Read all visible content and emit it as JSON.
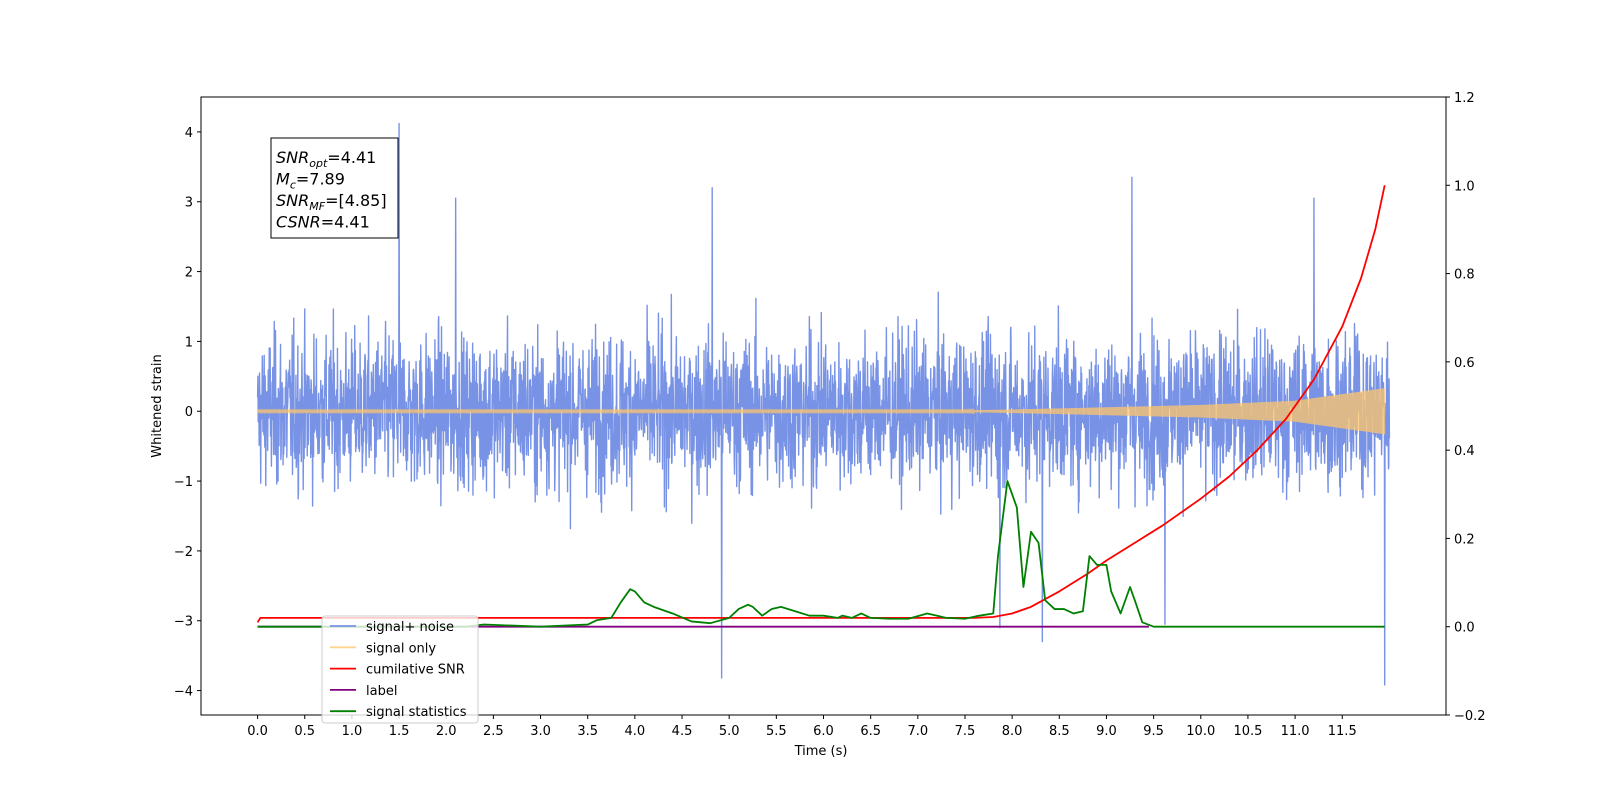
{
  "chart_data": {
    "type": "line",
    "xlabel": "Time (s)",
    "ylabel": "Whitened strain",
    "xlim": [
      -0.6,
      12.6
    ],
    "ylim": [
      -4.35,
      4.5
    ],
    "y2lim": [
      -0.2,
      1.2
    ],
    "x_ticks": [
      "0.0",
      "0.5",
      "1.0",
      "1.5",
      "2.0",
      "2.5",
      "3.0",
      "3.5",
      "4.0",
      "4.5",
      "5.0",
      "5.5",
      "6.0",
      "6.5",
      "7.0",
      "7.5",
      "8.0",
      "8.5",
      "9.0",
      "9.5",
      "10.0",
      "10.5",
      "11.0",
      "11.5"
    ],
    "y_ticks": [
      "4",
      "3",
      "2",
      "1",
      "0",
      "−1",
      "−2",
      "−3",
      "−4"
    ],
    "y2_ticks": [
      "1.2",
      "1.0",
      "0.8",
      "0.6",
      "0.4",
      "0.2",
      "0.0",
      "−0.2"
    ],
    "annotation": [
      {
        "base": "SNR",
        "sub": "opt",
        "value": "=4.41"
      },
      {
        "base": "M",
        "sub": "c",
        "value": "=7.89"
      },
      {
        "base": "SNR",
        "sub": "MF",
        "value": "=[4.85]"
      },
      {
        "base": "CSNR",
        "sub": "",
        "value": "=4.41"
      }
    ],
    "legend_position": "lower-left",
    "series": [
      {
        "name": "signal+ noise",
        "color": "#7893e6",
        "axis": "left",
        "description_x_range": [
          0,
          12
        ],
        "amplitude_typical": 1.6,
        "peaks": [
          [
            1.5,
            4.12
          ],
          [
            4.92,
            -3.82
          ],
          [
            11.95,
            -3.92
          ],
          [
            9.27,
            3.35
          ],
          [
            4.82,
            3.2
          ],
          [
            7.87,
            -3.1
          ],
          [
            8.32,
            -3.3
          ],
          [
            9.62,
            -3.05
          ],
          [
            2.1,
            3.05
          ],
          [
            11.2,
            3.05
          ]
        ]
      },
      {
        "name": "signal only",
        "color": "#ffc66b",
        "axis": "left",
        "envelope": [
          [
            0,
            0.01
          ],
          [
            7.5,
            0.01
          ],
          [
            8.5,
            0.04
          ],
          [
            10.0,
            0.09
          ],
          [
            11.0,
            0.15
          ],
          [
            11.95,
            0.33
          ]
        ]
      },
      {
        "name": "cumilative SNR",
        "color": "#ff0000",
        "axis": "right",
        "x": [
          0,
          0.03,
          7.6,
          7.8,
          8.0,
          8.2,
          8.5,
          8.8,
          9.0,
          9.3,
          9.6,
          10.0,
          10.3,
          10.6,
          10.9,
          11.2,
          11.5,
          11.7,
          11.85,
          11.95
        ],
        "y": [
          0.01,
          0.02,
          0.02,
          0.022,
          0.03,
          0.045,
          0.08,
          0.12,
          0.15,
          0.19,
          0.23,
          0.29,
          0.34,
          0.4,
          0.47,
          0.56,
          0.68,
          0.79,
          0.9,
          1.0
        ]
      },
      {
        "name": "label",
        "color": "#800080",
        "axis": "right",
        "x": [
          0,
          9.45
        ],
        "y": [
          0.0,
          0.0
        ]
      },
      {
        "name": "signal statistics",
        "color": "#008000",
        "axis": "right",
        "x": [
          0,
          2.2,
          2.4,
          3.0,
          3.5,
          3.6,
          3.75,
          3.85,
          3.95,
          4.0,
          4.1,
          4.2,
          4.4,
          4.6,
          4.8,
          5.0,
          5.1,
          5.2,
          5.25,
          5.35,
          5.45,
          5.55,
          5.7,
          5.85,
          6.0,
          6.15,
          6.2,
          6.3,
          6.4,
          6.5,
          6.7,
          6.9,
          7.1,
          7.2,
          7.3,
          7.5,
          7.65,
          7.8,
          7.85,
          7.95,
          8.05,
          8.12,
          8.2,
          8.28,
          8.35,
          8.45,
          8.55,
          8.65,
          8.75,
          8.82,
          8.9,
          9.0,
          9.05,
          9.15,
          9.25,
          9.3,
          9.38,
          9.5,
          11.95
        ],
        "y": [
          0.0,
          0.0,
          0.005,
          0.0,
          0.005,
          0.015,
          0.02,
          0.055,
          0.085,
          0.08,
          0.055,
          0.045,
          0.03,
          0.012,
          0.008,
          0.02,
          0.04,
          0.05,
          0.045,
          0.025,
          0.04,
          0.045,
          0.035,
          0.025,
          0.025,
          0.02,
          0.025,
          0.02,
          0.03,
          0.02,
          0.018,
          0.018,
          0.03,
          0.025,
          0.02,
          0.018,
          0.025,
          0.03,
          0.16,
          0.33,
          0.27,
          0.09,
          0.215,
          0.19,
          0.06,
          0.04,
          0.04,
          0.03,
          0.035,
          0.16,
          0.14,
          0.14,
          0.08,
          0.03,
          0.09,
          0.06,
          0.01,
          0.0,
          0.0
        ]
      }
    ]
  }
}
